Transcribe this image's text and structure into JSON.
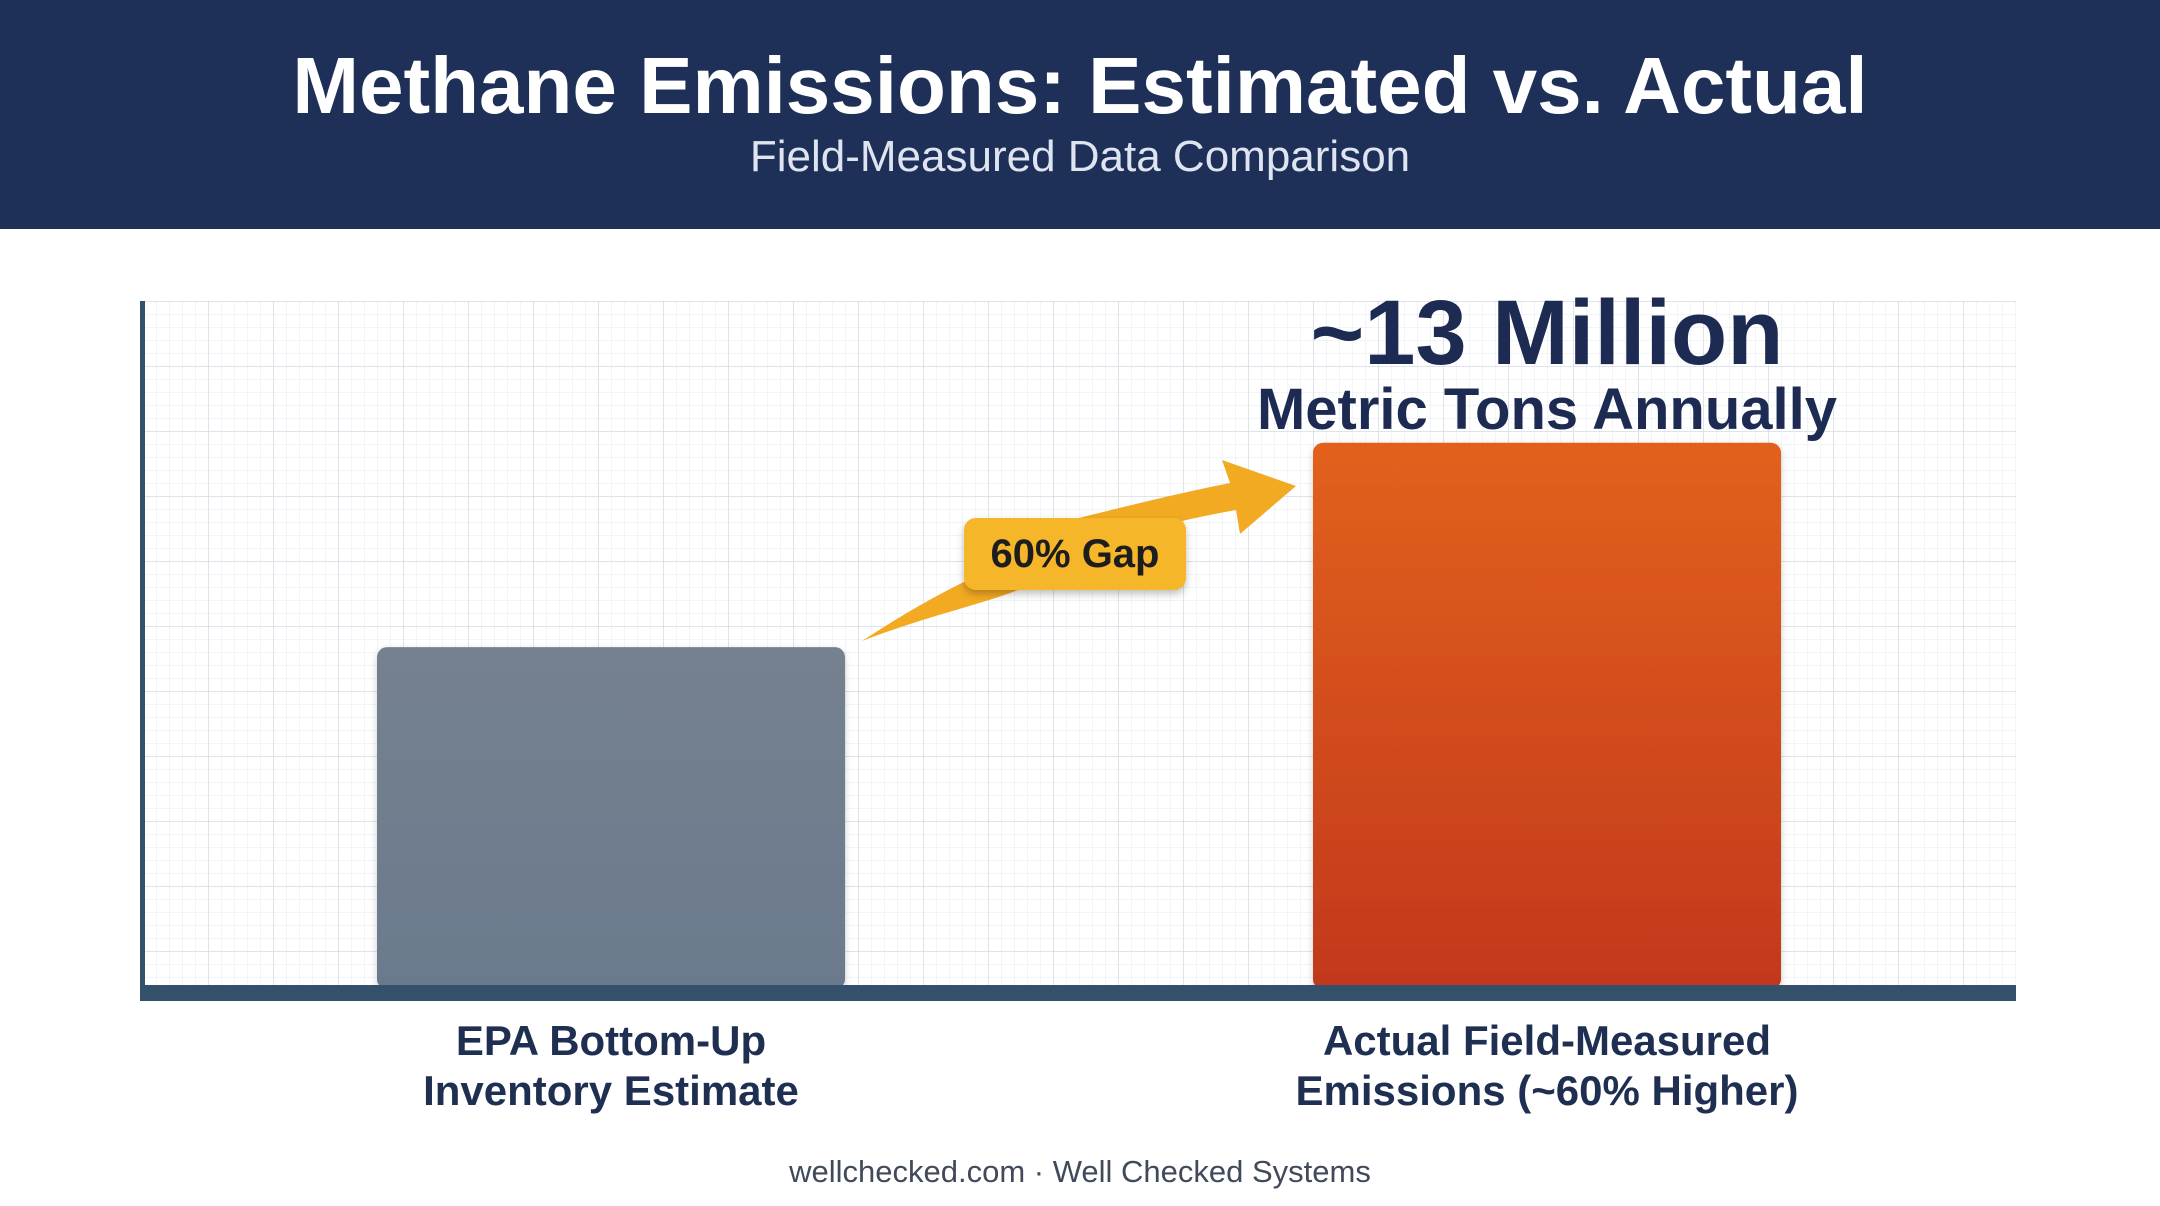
{
  "header": {
    "title": "Methane Emissions: Estimated vs. Actual",
    "subtitle": "Field-Measured Data Comparison"
  },
  "chart_data": {
    "type": "bar",
    "categories": [
      "EPA Bottom-Up Inventory Estimate",
      "Actual Field-Measured Emissions (~60% Higher)"
    ],
    "category_lines": [
      [
        "EPA Bottom-Up",
        "Inventory Estimate"
      ],
      [
        "Actual Field-Measured",
        "Emissions (~60% Higher)"
      ]
    ],
    "values": [
      8.1,
      13
    ],
    "unit": "million metric tons annually",
    "ylim": [
      0,
      16.4
    ],
    "grid": true,
    "colors": [
      "#6f7e8f",
      "#d9481c"
    ],
    "annotations": {
      "value_callout_big": "~13 Million",
      "value_callout_small": "Metric Tons Annually",
      "gap_label": "60% Gap"
    }
  },
  "footer": {
    "text": "wellchecked.com · Well Checked Systems"
  },
  "colors": {
    "header_bg": "#1f3058",
    "axis": "#34506b",
    "arrow": "#f5b62a"
  }
}
